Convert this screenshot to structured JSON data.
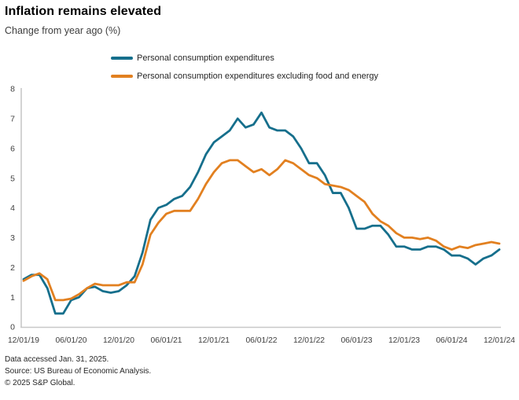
{
  "header": {
    "title": "Inflation remains elevated",
    "subtitle": "Change from year ago (%)"
  },
  "chart_data": {
    "type": "line",
    "title": "Inflation remains elevated",
    "subtitle": "Change from year ago (%)",
    "xlabel": "",
    "ylabel": "",
    "ylim": [
      0,
      8
    ],
    "y_ticks": [
      0,
      1,
      2,
      3,
      4,
      5,
      6,
      7,
      8
    ],
    "grid": false,
    "legend_position": "top",
    "x_unit": "monthly",
    "x_range": [
      "12/01/19",
      "12/01/24"
    ],
    "x_tick_labels": [
      "12/01/19",
      "06/01/20",
      "12/01/20",
      "06/01/21",
      "12/01/21",
      "06/01/22",
      "12/01/22",
      "06/01/23",
      "12/01/23",
      "06/01/24",
      "12/01/24"
    ],
    "series": [
      {
        "id": "pce",
        "name": "Personal consumption expenditures",
        "color": "#166f8c",
        "values": [
          1.6,
          1.75,
          1.75,
          1.3,
          0.45,
          0.45,
          0.9,
          1.0,
          1.3,
          1.35,
          1.2,
          1.15,
          1.2,
          1.4,
          1.7,
          2.5,
          3.6,
          4.0,
          4.1,
          4.3,
          4.4,
          4.7,
          5.2,
          5.8,
          6.2,
          6.4,
          6.6,
          7.0,
          6.7,
          6.8,
          7.2,
          6.7,
          6.6,
          6.6,
          6.4,
          6.0,
          5.5,
          5.5,
          5.1,
          4.5,
          4.5,
          4.0,
          3.3,
          3.3,
          3.4,
          3.4,
          3.1,
          2.7,
          2.7,
          2.6,
          2.6,
          2.7,
          2.7,
          2.6,
          2.4,
          2.4,
          2.3,
          2.1,
          2.3,
          2.4,
          2.6
        ]
      },
      {
        "id": "core-pce",
        "name": "Personal consumption expenditures excluding food and energy",
        "color": "#e28020",
        "values": [
          1.55,
          1.7,
          1.8,
          1.6,
          0.9,
          0.9,
          0.95,
          1.1,
          1.3,
          1.45,
          1.4,
          1.4,
          1.4,
          1.5,
          1.5,
          2.1,
          3.1,
          3.5,
          3.8,
          3.9,
          3.9,
          3.9,
          4.3,
          4.8,
          5.2,
          5.5,
          5.6,
          5.6,
          5.4,
          5.2,
          5.3,
          5.1,
          5.3,
          5.6,
          5.5,
          5.3,
          5.1,
          5.0,
          4.8,
          4.75,
          4.7,
          4.6,
          4.4,
          4.2,
          3.8,
          3.55,
          3.4,
          3.15,
          3.0,
          3.0,
          2.95,
          3.0,
          2.9,
          2.7,
          2.6,
          2.7,
          2.65,
          2.75,
          2.8,
          2.85,
          2.8
        ]
      }
    ]
  },
  "footer": {
    "line1": "Data accessed Jan. 31, 2025.",
    "line2": "Source: US Bureau of Economic Analysis.",
    "line3": "© 2025 S&P Global."
  },
  "colors": {
    "pce_line": "#166f8c",
    "core_pce_line": "#e28020",
    "axis": "#c8c8c8",
    "tick_text": "#404040"
  }
}
